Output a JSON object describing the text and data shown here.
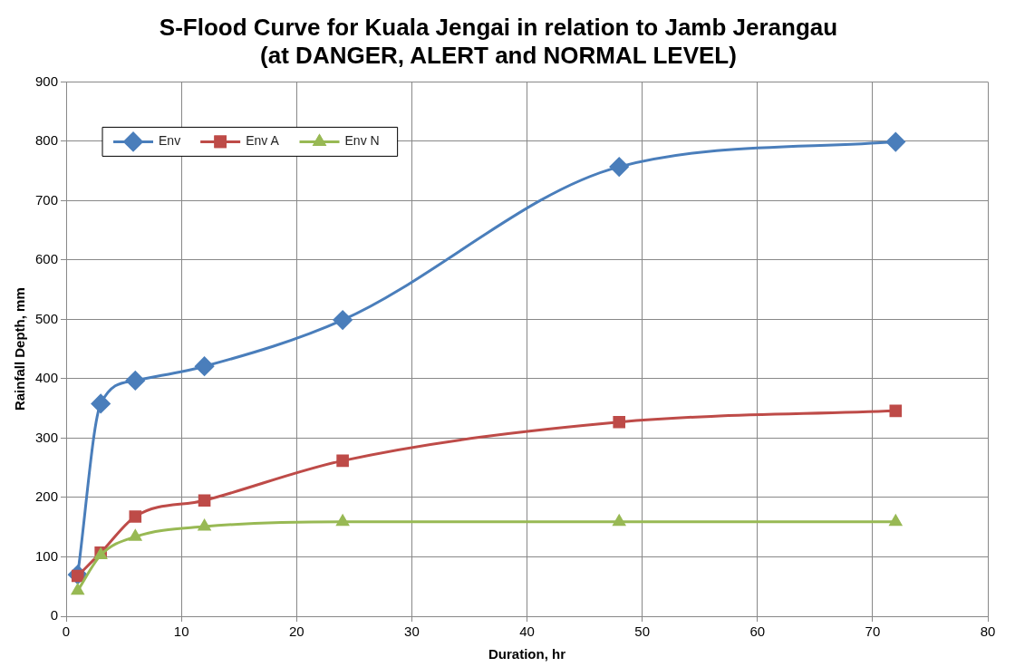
{
  "chart_data": {
    "type": "line",
    "title": "S-Flood Curve for Kuala Jengai in relation to Jamb Jerangau (at DANGER, ALERT and NORMAL LEVEL)",
    "xlabel": "Duration, hr",
    "ylabel": "Rainfall Depth, mm",
    "x": [
      1,
      3,
      6,
      12,
      24,
      48,
      72
    ],
    "series": [
      {
        "name": "Env",
        "color": "#4a7ebb",
        "marker": "diamond",
        "values": [
          70,
          358,
          397,
          421,
          499,
          757,
          799
        ]
      },
      {
        "name": "Env A",
        "color": "#be4b48",
        "marker": "square",
        "values": [
          68,
          107,
          168,
          195,
          262,
          327,
          346
        ]
      },
      {
        "name": "Env N",
        "color": "#98b954",
        "marker": "triangle",
        "values": [
          43,
          103,
          134,
          151,
          159,
          159,
          159
        ]
      }
    ],
    "xlim": [
      0,
      80
    ],
    "xticks": [
      0,
      10,
      20,
      30,
      40,
      50,
      60,
      70,
      80
    ],
    "ylim": [
      0,
      900
    ],
    "yticks": [
      0,
      100,
      200,
      300,
      400,
      500,
      600,
      700,
      800,
      900
    ],
    "grid": true,
    "legend": "top left",
    "line_style": "solid"
  }
}
